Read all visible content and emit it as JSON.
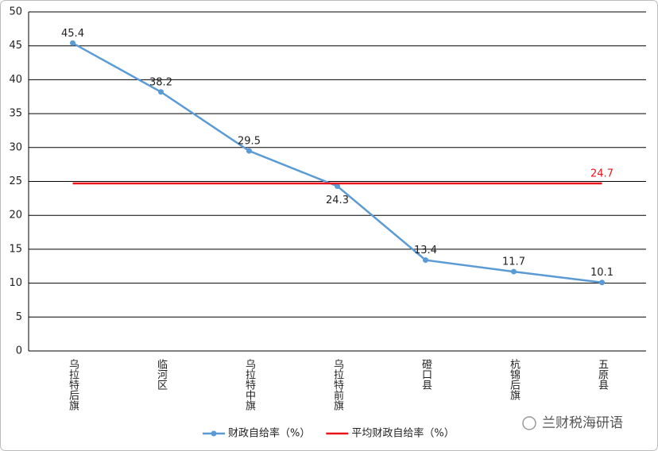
{
  "chart_data": {
    "type": "line",
    "categories": [
      "乌拉特后旗",
      "临河区",
      "乌拉特中旗",
      "乌拉特前旗",
      "磴口县",
      "杭锦后旗",
      "五原县"
    ],
    "series": [
      {
        "name": "财政自给率（%）",
        "color": "#5b9bd5",
        "values": [
          45.4,
          38.2,
          29.5,
          24.3,
          13.4,
          11.7,
          10.1
        ],
        "marker": true,
        "labels": "all"
      },
      {
        "name": "平均财政自给率（%）",
        "color": "#e8141a",
        "values": [
          24.7,
          24.7,
          24.7,
          24.7,
          24.7,
          24.7,
          24.7
        ],
        "marker": false,
        "labels": "last"
      }
    ],
    "ylim": [
      0,
      50
    ],
    "yticks": [
      0,
      5,
      10,
      15,
      20,
      25,
      30,
      35,
      40,
      45,
      50
    ],
    "grid": true,
    "legend": "bottom",
    "annotation": "兰财税海研语"
  }
}
